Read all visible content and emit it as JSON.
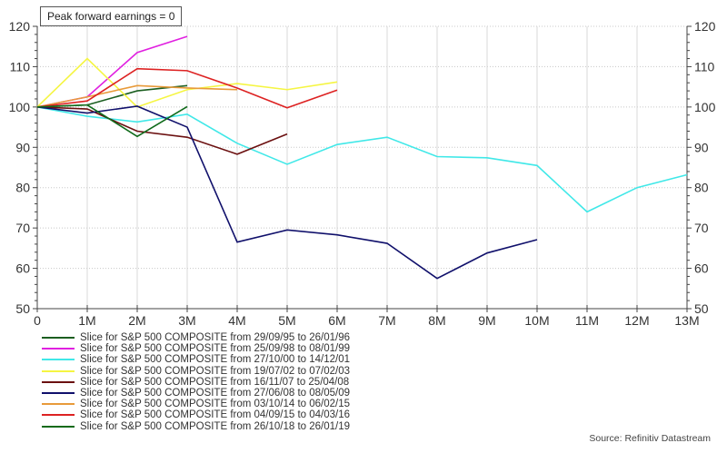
{
  "chart_data": {
    "type": "line",
    "title": "Peak forward earnings = 0",
    "xlabel": "",
    "ylabel": "",
    "x": [
      "0",
      "1M",
      "2M",
      "3M",
      "4M",
      "5M",
      "6M",
      "7M",
      "8M",
      "9M",
      "10M",
      "11M",
      "12M",
      "13M"
    ],
    "ylim": [
      50,
      120
    ],
    "yticks": [
      50,
      60,
      70,
      80,
      90,
      100,
      110,
      120
    ],
    "grid": true,
    "secondary_y_axis": true,
    "legend_position": "bottom-left",
    "series": [
      {
        "name": "Slice for S&P 500 COMPOSITE from 29/09/95 to 26/01/96",
        "color": "#1b5e20",
        "values": [
          100,
          100.5,
          104,
          105.3
        ]
      },
      {
        "name": "Slice for S&P 500 COMPOSITE from 25/09/98 to 08/01/99",
        "color": "#e020e0",
        "values": [
          100,
          102.5,
          113.5,
          117.5
        ]
      },
      {
        "name": "Slice for S&P 500 COMPOSITE from 27/10/00 to 14/12/01",
        "color": "#40e8e8",
        "values": [
          100,
          97.7,
          96.3,
          98.2,
          91,
          85.8,
          90.7,
          92.5,
          87.7,
          87.4,
          85.5,
          74,
          80,
          83.2
        ]
      },
      {
        "name": "Slice for S&P 500 COMPOSITE from 19/07/02 to 07/02/03",
        "color": "#f5f542",
        "values": [
          100,
          112,
          100,
          104.3,
          105.8,
          104.3,
          106.2
        ]
      },
      {
        "name": "Slice for S&P 500 COMPOSITE from 16/11/07 to 25/04/08",
        "color": "#6b1010",
        "values": [
          100,
          99.5,
          94,
          92.5,
          88.3,
          93.3
        ]
      },
      {
        "name": "Slice for S&P 500 COMPOSITE from 27/06/08 to 08/05/09",
        "color": "#10106b",
        "values": [
          100,
          98.5,
          100.2,
          95,
          66.5,
          69.5,
          68.3,
          66.2,
          57.5,
          63.8,
          67.1
        ]
      },
      {
        "name": "Slice for S&P 500 COMPOSITE from 03/10/14 to 06/02/15",
        "color": "#e89a3a",
        "values": [
          100,
          102.5,
          105.3,
          104.7,
          104.3
        ]
      },
      {
        "name": "Slice for S&P 500 COMPOSITE from 04/09/15 to 04/03/16",
        "color": "#dd2222",
        "values": [
          100,
          101.5,
          109.5,
          109,
          104.7,
          99.8,
          104.2
        ]
      },
      {
        "name": "Slice for S&P 500 COMPOSITE from 26/10/18 to 26/01/19",
        "color": "#0f6a1a",
        "values": [
          100,
          100.5,
          92.7,
          100.1
        ]
      }
    ]
  },
  "source": "Source: Refinitiv Datastream"
}
